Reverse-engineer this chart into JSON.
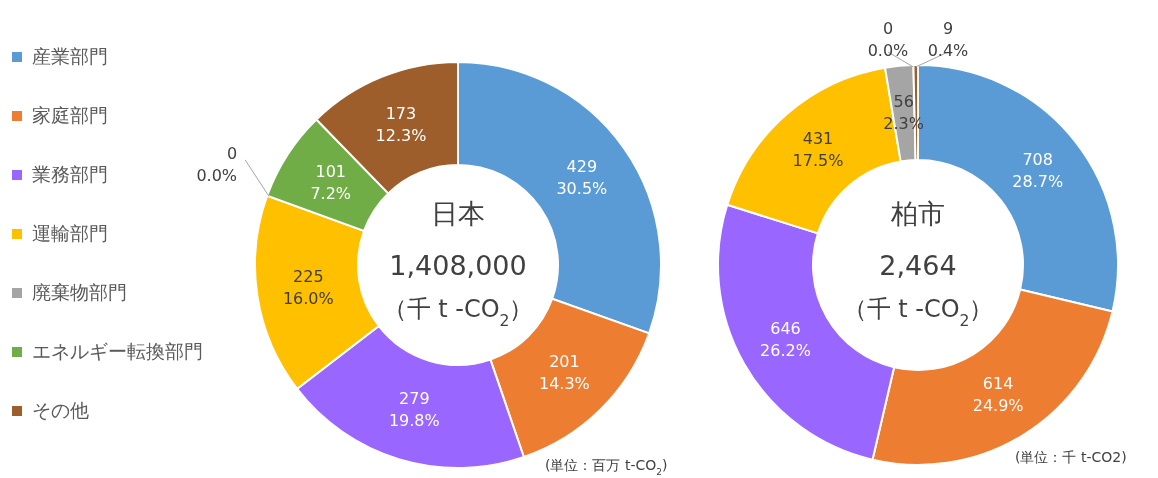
{
  "chart_data": [
    {
      "type": "donut",
      "title": "日本",
      "subtitle": "1,408,000",
      "annotations": [
        "（千 t -CO$_{2}$）",
        "(単位：百万 t-CO$_{2}$)"
      ],
      "categories": [
        "産業部門",
        "家庭部門",
        "業務部門",
        "運輸部門",
        "廃棄物部門",
        "エネルギー転換部門",
        "その他"
      ],
      "values": [
        429,
        201,
        279,
        225,
        0,
        101,
        173
      ],
      "value_labels": [
        "429\n30.5%",
        "201\n14.3%",
        "279\n19.8%",
        "225\n16.0%",
        "0\n0.0%",
        "101\n7.2%",
        "173\n12.3%"
      ],
      "colors": [
        "#5b9bd5",
        "#ed7d31",
        "#9966ff",
        "#ffc000",
        "#a5a5a5",
        "#70ad47",
        "#9e5e2b"
      ],
      "legend": "left"
    },
    {
      "type": "donut",
      "title": "柏市",
      "subtitle": "2,464",
      "annotations": [
        "（千 t -CO$_{2}$）",
        "(単位：千 t-CO2)"
      ],
      "categories": [
        null,
        null,
        null,
        null,
        null,
        null,
        null
      ],
      "values": [
        708,
        614,
        646,
        431,
        56,
        0,
        9
      ],
      "value_labels": [
        "708\n28.7%",
        "614\n24.9%",
        "646\n26.2%",
        "431\n17.5%",
        "56\n2.3%",
        "0\n0.0%",
        "9\n0.4%"
      ],
      "colors": [
        "#5b9bd5",
        "#ed7d31",
        "#9966ff",
        "#ffc000",
        "#a5a5a5",
        null,
        "#9e5e2b"
      ]
    }
  ]
}
